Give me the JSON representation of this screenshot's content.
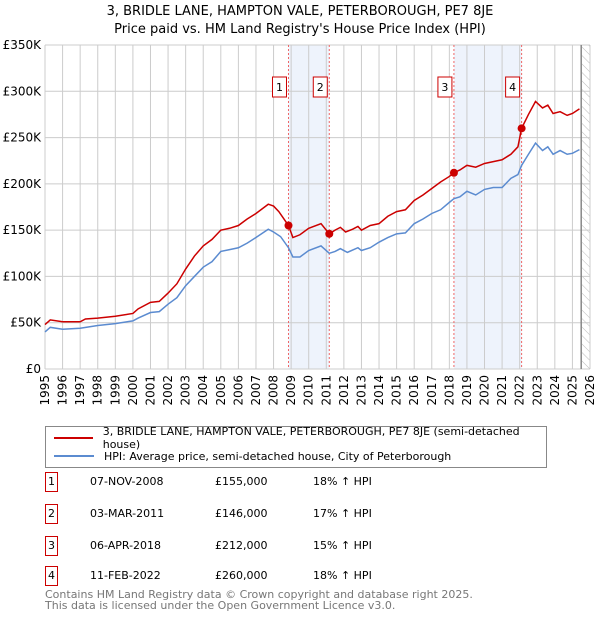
{
  "title": "3, BRIDLE LANE, HAMPTON VALE, PETERBOROUGH, PE7 8JE",
  "subtitle": "Price paid vs. HM Land Registry's House Price Index (HPI)",
  "chart_data": {
    "type": "line",
    "title": "3, BRIDLE LANE, HAMPTON VALE, PETERBOROUGH, PE7 8JE",
    "subtitle": "Price paid vs. HM Land Registry's House Price Index (HPI)",
    "xlim": [
      1995,
      2026
    ],
    "ylim": [
      0,
      350000
    ],
    "x_ticks": [
      "1995",
      "1996",
      "1997",
      "1998",
      "1999",
      "2000",
      "2001",
      "2002",
      "2003",
      "2004",
      "2005",
      "2006",
      "2007",
      "2008",
      "2009",
      "2010",
      "2011",
      "2012",
      "2013",
      "2014",
      "2015",
      "2016",
      "2017",
      "2018",
      "2019",
      "2020",
      "2021",
      "2022",
      "2023",
      "2024",
      "2025",
      "2026"
    ],
    "y_ticks": [
      {
        "v": 0,
        "l": "£0"
      },
      {
        "v": 50000,
        "l": "£50K"
      },
      {
        "v": 100000,
        "l": "£100K"
      },
      {
        "v": 150000,
        "l": "£150K"
      },
      {
        "v": 200000,
        "l": "£200K"
      },
      {
        "v": 250000,
        "l": "£250K"
      },
      {
        "v": 300000,
        "l": "£300K"
      },
      {
        "v": 350000,
        "l": "£350K"
      }
    ],
    "grid": true,
    "data_end": 2025.5,
    "series": [
      {
        "name": "3, BRIDLE LANE, HAMPTON VALE, PETERBOROUGH, PE7 8JE (semi-detached house)",
        "color": "#cc0000",
        "x": [
          1995,
          1995.3,
          1996,
          1997,
          1997.3,
          1998,
          1999,
          2000,
          2000.3,
          2001,
          2001.5,
          2002,
          2002.5,
          2003,
          2003.5,
          2004,
          2004.5,
          2005,
          2005.5,
          2006,
          2006.5,
          2007,
          2007.7,
          2008,
          2008.3,
          2008.85,
          2009.1,
          2009.5,
          2010,
          2010.7,
          2011.17,
          2011.5,
          2011.8,
          2012.1,
          2012.5,
          2012.8,
          2013,
          2013.5,
          2014,
          2014.5,
          2015,
          2015.5,
          2016,
          2016.5,
          2017,
          2017.5,
          2018,
          2018.26,
          2018.6,
          2019,
          2019.5,
          2020,
          2020.5,
          2021,
          2021.5,
          2021.9,
          2022.11,
          2022.5,
          2022.9,
          2023.3,
          2023.6,
          2023.9,
          2024.3,
          2024.7,
          2025,
          2025.4
        ],
        "y": [
          48000,
          53000,
          51000,
          51000,
          54000,
          55000,
          57000,
          60000,
          65000,
          72000,
          73000,
          82000,
          92000,
          108000,
          122000,
          133000,
          140000,
          150000,
          152000,
          155000,
          162000,
          168000,
          178000,
          176000,
          170000,
          155000,
          142000,
          145000,
          152000,
          157000,
          146000,
          150000,
          153000,
          148000,
          151000,
          154000,
          150000,
          155000,
          157000,
          165000,
          170000,
          172000,
          182000,
          188000,
          195000,
          202000,
          208000,
          212000,
          215000,
          220000,
          218000,
          222000,
          224000,
          226000,
          232000,
          240000,
          260000,
          275000,
          289000,
          282000,
          285000,
          276000,
          278000,
          274000,
          276000,
          281000
        ]
      },
      {
        "name": "HPI: Average price, semi-detached house, City of Peterborough",
        "color": "#5b8bd0",
        "x": [
          1995,
          1995.3,
          1996,
          1997,
          1998,
          1999,
          2000,
          2000.3,
          2001,
          2001.5,
          2002,
          2002.5,
          2003,
          2003.5,
          2004,
          2004.5,
          2005,
          2005.5,
          2006,
          2006.5,
          2007,
          2007.7,
          2008,
          2008.4,
          2008.85,
          2009.1,
          2009.5,
          2010,
          2010.7,
          2011.17,
          2011.5,
          2011.8,
          2012.2,
          2012.8,
          2013,
          2013.5,
          2014,
          2014.5,
          2015,
          2015.5,
          2016,
          2016.5,
          2017,
          2017.5,
          2018,
          2018.26,
          2018.6,
          2019,
          2019.5,
          2020,
          2020.5,
          2021,
          2021.5,
          2021.9,
          2022.11,
          2022.5,
          2022.9,
          2023.3,
          2023.6,
          2023.9,
          2024.3,
          2024.7,
          2025,
          2025.4
        ],
        "y": [
          40000,
          45000,
          43000,
          44000,
          47000,
          49000,
          52000,
          55000,
          61000,
          62000,
          70000,
          77000,
          90000,
          100000,
          110000,
          116000,
          127000,
          129000,
          131000,
          136000,
          142000,
          151000,
          148000,
          143000,
          131000,
          121000,
          121000,
          128000,
          133000,
          125000,
          127000,
          130000,
          126000,
          131000,
          128000,
          131000,
          137000,
          142000,
          146000,
          147000,
          157000,
          162000,
          168000,
          172000,
          180000,
          184000,
          186000,
          192000,
          188000,
          194000,
          196000,
          196000,
          206000,
          210000,
          220000,
          232000,
          244000,
          236000,
          240000,
          232000,
          236000,
          232000,
          233000,
          237000
        ]
      }
    ],
    "sales": [
      {
        "label": "1",
        "x": 2008.85,
        "y": 155000,
        "date": "07-NOV-2008",
        "price": "£155,000",
        "hpi": "18% ↑ HPI"
      },
      {
        "label": "2",
        "x": 2011.17,
        "y": 146000,
        "date": "03-MAR-2011",
        "price": "£146,000",
        "hpi": "17% ↑ HPI"
      },
      {
        "label": "3",
        "x": 2018.26,
        "y": 212000,
        "date": "06-APR-2018",
        "price": "£212,000",
        "hpi": "15% ↑ HPI"
      },
      {
        "label": "4",
        "x": 2022.11,
        "y": 260000,
        "date": "11-FEB-2022",
        "price": "£260,000",
        "hpi": "18% ↑ HPI"
      }
    ],
    "shaded_ranges": [
      [
        2008.85,
        2011.17
      ],
      [
        2018.26,
        2022.11
      ]
    ],
    "legend": "bottom"
  },
  "footer": [
    "Contains HM Land Registry data © Crown copyright and database right 2025.",
    "This data is licensed under the Open Government Licence v3.0."
  ]
}
